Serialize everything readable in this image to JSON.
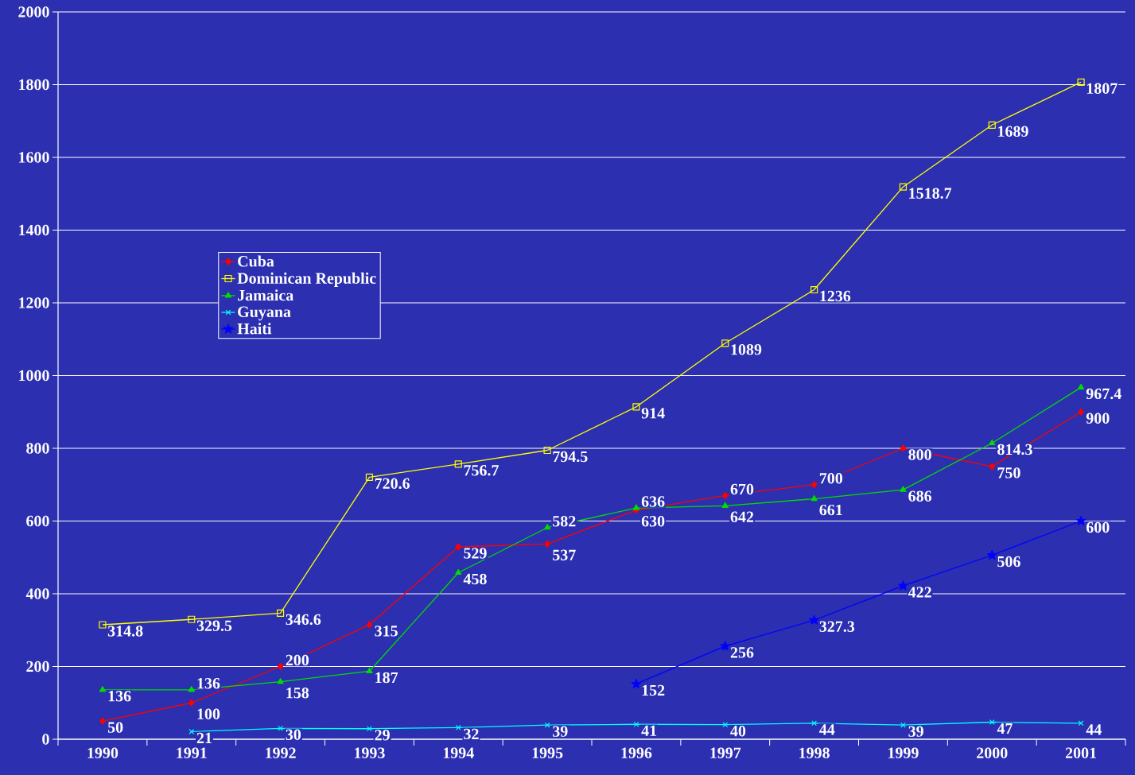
{
  "chart_data": {
    "type": "line",
    "categories": [
      "1990",
      "1991",
      "1992",
      "1993",
      "1994",
      "1995",
      "1996",
      "1997",
      "1998",
      "1999",
      "2000",
      "2001"
    ],
    "ylim": [
      0,
      2000
    ],
    "yticks": [
      0,
      200,
      400,
      600,
      800,
      1000,
      1200,
      1400,
      1600,
      1800,
      2000
    ],
    "grid": "y",
    "legend": "left",
    "data_labels": true,
    "series": [
      {
        "name": "Cuba",
        "color": "#ff0000",
        "marker": "diamond",
        "values": [
          50,
          100,
          200,
          315,
          529,
          537,
          630,
          670,
          700,
          800,
          750,
          900
        ]
      },
      {
        "name": "Dominican Republic",
        "color": "#ffff00",
        "marker": "square",
        "values": [
          314.8,
          329.5,
          346.6,
          720.6,
          756.7,
          794.5,
          914,
          1089,
          1236,
          1518.7,
          1689,
          1807
        ]
      },
      {
        "name": "Jamaica",
        "color": "#00dd00",
        "marker": "triangle",
        "values": [
          136,
          136,
          158,
          187,
          458,
          582,
          636,
          642,
          661,
          686,
          814.3,
          967.4
        ]
      },
      {
        "name": "Guyana",
        "color": "#00ffff",
        "marker": "cross",
        "values": [
          null,
          21,
          30,
          29,
          32,
          39,
          41,
          40,
          44,
          39,
          47,
          44
        ]
      },
      {
        "name": "Haiti",
        "color": "#0000ff",
        "marker": "star",
        "values": [
          null,
          null,
          null,
          null,
          null,
          null,
          152,
          256,
          327.3,
          422,
          506,
          600
        ]
      }
    ]
  }
}
